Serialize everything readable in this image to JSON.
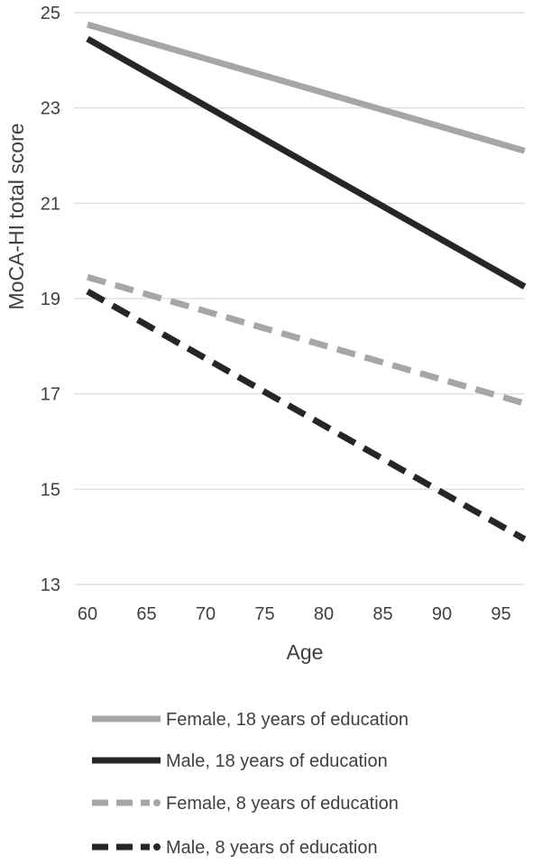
{
  "chart_data": {
    "type": "line",
    "title": "",
    "xlabel": "Age",
    "ylabel": "MoCA-HI total score",
    "xlim": [
      60,
      97
    ],
    "ylim": [
      13,
      25
    ],
    "xticks": [
      60,
      65,
      70,
      75,
      80,
      85,
      90,
      95
    ],
    "yticks": [
      13,
      15,
      17,
      19,
      21,
      23,
      25
    ],
    "grid": "horizontal",
    "legend_position": "bottom",
    "series": [
      {
        "name": "Female, 18 years of education",
        "x": [
          60,
          97
        ],
        "values": [
          24.75,
          22.1
        ],
        "color": "#a6a6a6",
        "dash": "solid"
      },
      {
        "name": "Male, 18 years of education",
        "x": [
          60,
          97
        ],
        "values": [
          24.45,
          19.25
        ],
        "color": "#262626",
        "dash": "solid"
      },
      {
        "name": "Female, 8 years of education",
        "x": [
          60,
          97
        ],
        "values": [
          19.45,
          16.8
        ],
        "color": "#a6a6a6",
        "dash": "dashed"
      },
      {
        "name": "Male, 8 years of education",
        "x": [
          60,
          97
        ],
        "values": [
          19.15,
          13.95
        ],
        "color": "#262626",
        "dash": "dashed"
      }
    ]
  }
}
